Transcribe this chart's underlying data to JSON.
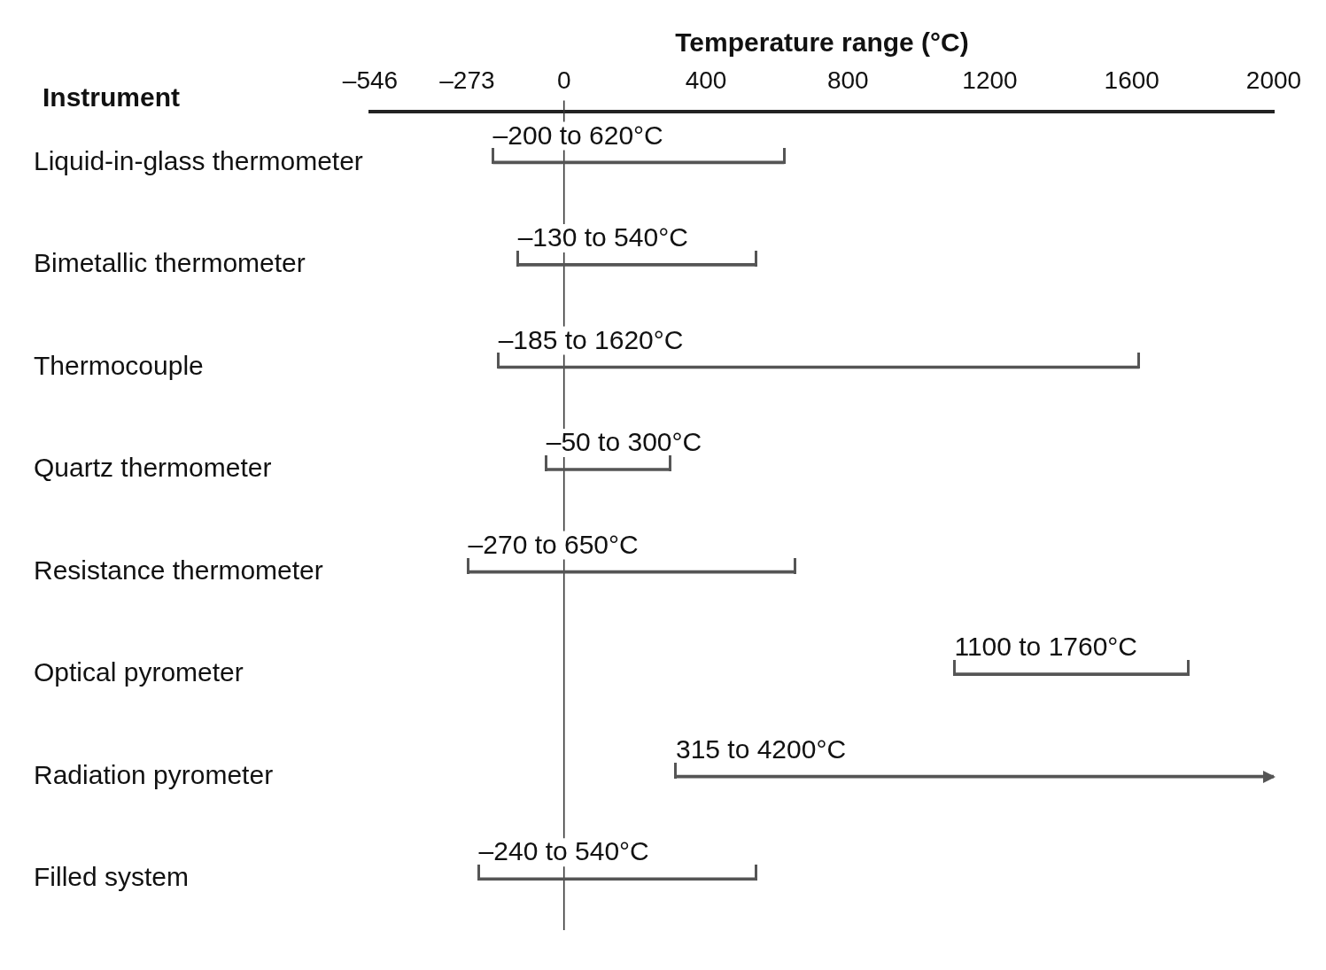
{
  "chart_data": {
    "type": "bar",
    "orientation": "horizontal",
    "xlabel": "Temperature range (°C)",
    "ylabel": "Instrument",
    "categories": [
      "Liquid-in-glass thermometer",
      "Bimetallic thermometer",
      "Thermocouple",
      "Quartz thermometer",
      "Resistance thermometer",
      "Optical pyrometer",
      "Radiation pyrometer",
      "Filled system"
    ],
    "base": [
      -200,
      -130,
      -185,
      -50,
      -270,
      1100,
      315,
      -240
    ],
    "values": [
      820,
      670,
      1805,
      350,
      920,
      660,
      3885,
      780
    ],
    "annotations": [
      {
        "text": "–200 to 620°C",
        "x": -200,
        "y": "Liquid-in-glass thermometer"
      },
      {
        "text": "–130 to 540°C",
        "x": -130,
        "y": "Bimetallic thermometer"
      },
      {
        "text": "–185 to 1620°C",
        "x": -185,
        "y": "Thermocouple"
      },
      {
        "text": "–50 to 300°C",
        "x": -50,
        "y": "Quartz thermometer"
      },
      {
        "text": "–270 to 650°C",
        "x": -270,
        "y": "Resistance thermometer"
      },
      {
        "text": "1100 to 1760°C",
        "x": 1100,
        "y": "Optical pyrometer"
      },
      {
        "text": "315 to 4200°C",
        "x": 315,
        "y": "Radiation pyrometer"
      },
      {
        "text": "–240 to 540°C",
        "x": -240,
        "y": "Filled system"
      }
    ],
    "color": "#555555",
    "xlim": [
      -546,
      2000
    ],
    "xticks": [
      {
        "value": -546,
        "label": "–546"
      },
      {
        "value": -273,
        "label": "–273"
      },
      0,
      400,
      800,
      1200,
      1600,
      2000
    ],
    "ref_lines": [
      {
        "axis": "x",
        "value": 0,
        "color": "#333333"
      }
    ],
    "grid": false,
    "legend": false
  }
}
